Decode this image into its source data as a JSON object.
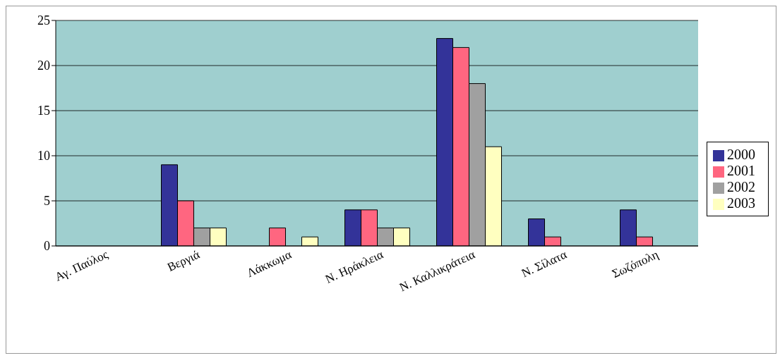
{
  "chart_data": {
    "type": "bar",
    "categories": [
      "Αγ. Παύλος",
      "Βεργιά",
      "Λάκκωμα",
      "Ν. Ηράκλεια",
      "Ν. Καλλικράτεια",
      "Ν. Σίλατα",
      "Σωζόπολη"
    ],
    "series": [
      {
        "name": "2000",
        "color": "#333399",
        "values": [
          0,
          9,
          0,
          4,
          23,
          3,
          4
        ]
      },
      {
        "name": "2001",
        "color": "#ff6680",
        "values": [
          0,
          5,
          2,
          4,
          22,
          1,
          1
        ]
      },
      {
        "name": "2002",
        "color": "#a0a0a0",
        "values": [
          0,
          2,
          0,
          2,
          18,
          0,
          0
        ]
      },
      {
        "name": "2003",
        "color": "#ffffc0",
        "values": [
          0,
          2,
          1,
          2,
          11,
          0,
          0
        ]
      }
    ],
    "ylim": [
      0,
      25
    ],
    "yticks": [
      0,
      5,
      10,
      15,
      20,
      25
    ],
    "grid": "y",
    "legend": "right"
  }
}
